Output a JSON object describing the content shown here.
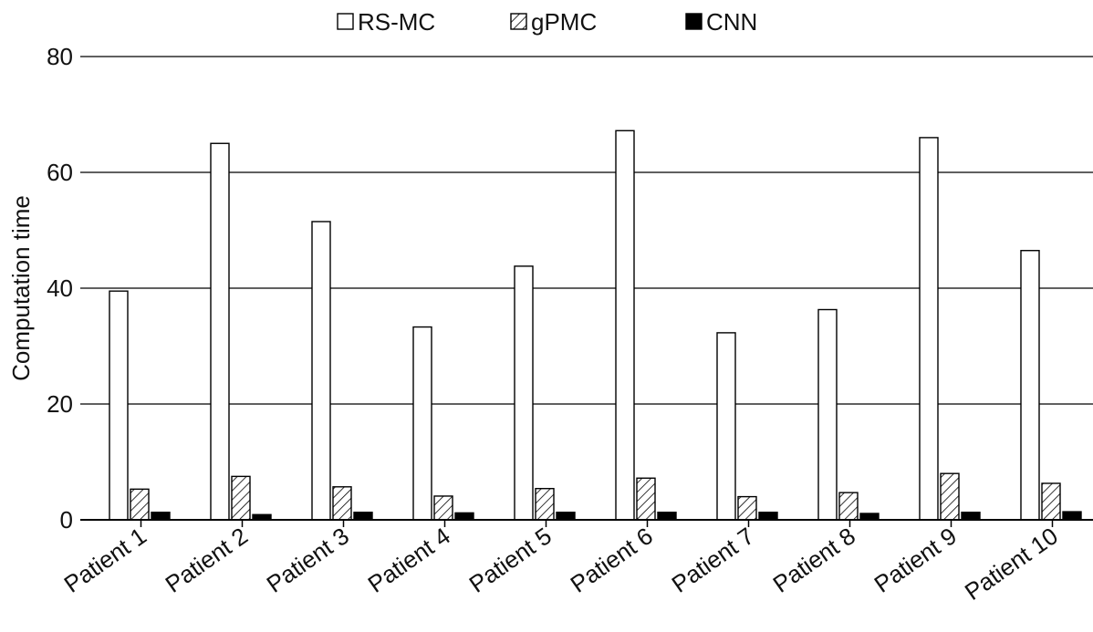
{
  "chart_data": {
    "type": "bar",
    "title": "",
    "xlabel": "",
    "ylabel": "Computation time",
    "ylim": [
      0,
      80
    ],
    "yticks": [
      0,
      20,
      40,
      60,
      80
    ],
    "grid": true,
    "legend_position": "top-center",
    "categories": [
      "Patient 1",
      "Patient 2",
      "Patient 3",
      "Patient 4",
      "Patient 5",
      "Patient 6",
      "Patient 7",
      "Patient 8",
      "Patient 9",
      "Patient 10"
    ],
    "series": [
      {
        "name": "RS-MC",
        "fill": "#ffffff",
        "pattern": "none",
        "values": [
          39.5,
          65.0,
          51.5,
          33.3,
          43.8,
          67.2,
          32.3,
          36.3,
          66.0,
          46.5
        ]
      },
      {
        "name": "gPMC",
        "fill": "#ffffff",
        "pattern": "hatch",
        "values": [
          5.3,
          7.5,
          5.7,
          4.1,
          5.4,
          7.2,
          4.0,
          4.7,
          8.0,
          6.3
        ]
      },
      {
        "name": "CNN",
        "fill": "#000000",
        "pattern": "none",
        "values": [
          1.3,
          0.9,
          1.3,
          1.2,
          1.3,
          1.3,
          1.3,
          1.1,
          1.3,
          1.4
        ]
      }
    ]
  }
}
